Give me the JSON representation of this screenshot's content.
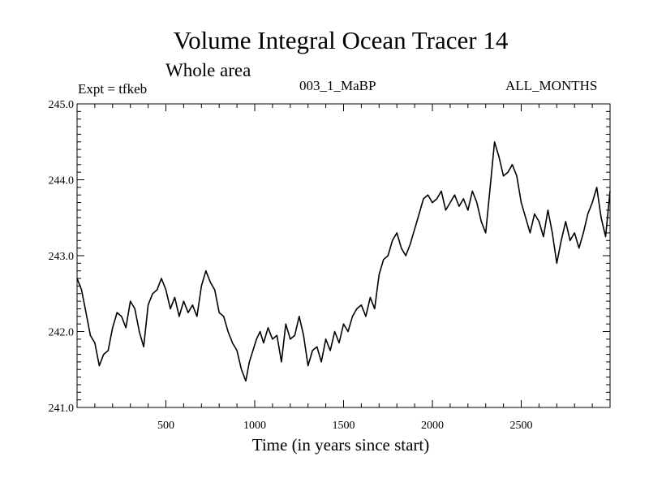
{
  "header": {
    "title": "Volume Integral Ocean Tracer 14",
    "subtitle": "Whole area",
    "expt": "Expt = tfkeb",
    "center_label": "003_1_MaBP",
    "right_label": "ALL_MONTHS"
  },
  "chart_data": {
    "type": "line",
    "title": "Volume Integral Ocean Tracer 14",
    "xlabel": "Time (in years since start)",
    "ylabel": "",
    "xlim": [
      0,
      3000
    ],
    "ylim": [
      241.0,
      245.0
    ],
    "x_ticks": [
      500,
      1000,
      1500,
      2000,
      2500
    ],
    "y_ticks": [
      "241.0",
      "242.0",
      "243.0",
      "244.0",
      "245.0"
    ],
    "grid": false,
    "series": [
      {
        "x": [
          0,
          25,
          50,
          75,
          100,
          125,
          150,
          175,
          200,
          225,
          250,
          275,
          300,
          325,
          350,
          375,
          400,
          425,
          450,
          475,
          500,
          525,
          550,
          575,
          600,
          625,
          650,
          675,
          700,
          725,
          750,
          775,
          800,
          825,
          850,
          875,
          900,
          925,
          950,
          970,
          990,
          1010,
          1030,
          1050,
          1075,
          1100,
          1125,
          1150,
          1175,
          1200,
          1225,
          1250,
          1275,
          1300,
          1325,
          1350,
          1375,
          1400,
          1425,
          1450,
          1475,
          1500,
          1525,
          1550,
          1575,
          1600,
          1625,
          1650,
          1675,
          1700,
          1725,
          1750,
          1775,
          1800,
          1825,
          1850,
          1875,
          1900,
          1925,
          1950,
          1975,
          2000,
          2025,
          2050,
          2075,
          2100,
          2125,
          2150,
          2175,
          2200,
          2225,
          2250,
          2275,
          2300,
          2325,
          2350,
          2375,
          2400,
          2425,
          2450,
          2475,
          2500,
          2525,
          2550,
          2575,
          2600,
          2625,
          2650,
          2675,
          2700,
          2725,
          2750,
          2775,
          2800,
          2825,
          2850,
          2875,
          2900,
          2925,
          2950,
          2975,
          3000
        ],
        "values": [
          242.7,
          242.55,
          242.25,
          241.95,
          241.85,
          241.55,
          241.7,
          241.75,
          242.05,
          242.25,
          242.2,
          242.05,
          242.4,
          242.3,
          242.0,
          241.8,
          242.35,
          242.5,
          242.55,
          242.7,
          242.55,
          242.3,
          242.45,
          242.2,
          242.4,
          242.25,
          242.35,
          242.2,
          242.6,
          242.8,
          242.65,
          242.55,
          242.25,
          242.2,
          242.0,
          241.85,
          241.75,
          241.5,
          241.35,
          241.6,
          241.75,
          241.9,
          242.0,
          241.85,
          242.05,
          241.9,
          241.95,
          241.6,
          242.1,
          241.9,
          241.95,
          242.2,
          241.95,
          241.55,
          241.75,
          241.8,
          241.6,
          241.9,
          241.75,
          242.0,
          241.85,
          242.1,
          242.0,
          242.2,
          242.3,
          242.35,
          242.2,
          242.45,
          242.3,
          242.75,
          242.95,
          243.0,
          243.2,
          243.3,
          243.1,
          243.0,
          243.15,
          243.35,
          243.55,
          243.75,
          243.8,
          243.7,
          243.75,
          243.85,
          243.6,
          243.7,
          243.8,
          243.65,
          243.75,
          243.6,
          243.85,
          243.7,
          243.45,
          243.3,
          243.9,
          244.5,
          244.3,
          244.05,
          244.1,
          244.2,
          244.05,
          243.7,
          243.5,
          243.3,
          243.55,
          243.45,
          243.25,
          243.6,
          243.3,
          242.9,
          243.2,
          243.45,
          243.2,
          243.3,
          243.1,
          243.3,
          243.55,
          243.7,
          243.9,
          243.5,
          243.25,
          243.85
        ]
      }
    ]
  }
}
